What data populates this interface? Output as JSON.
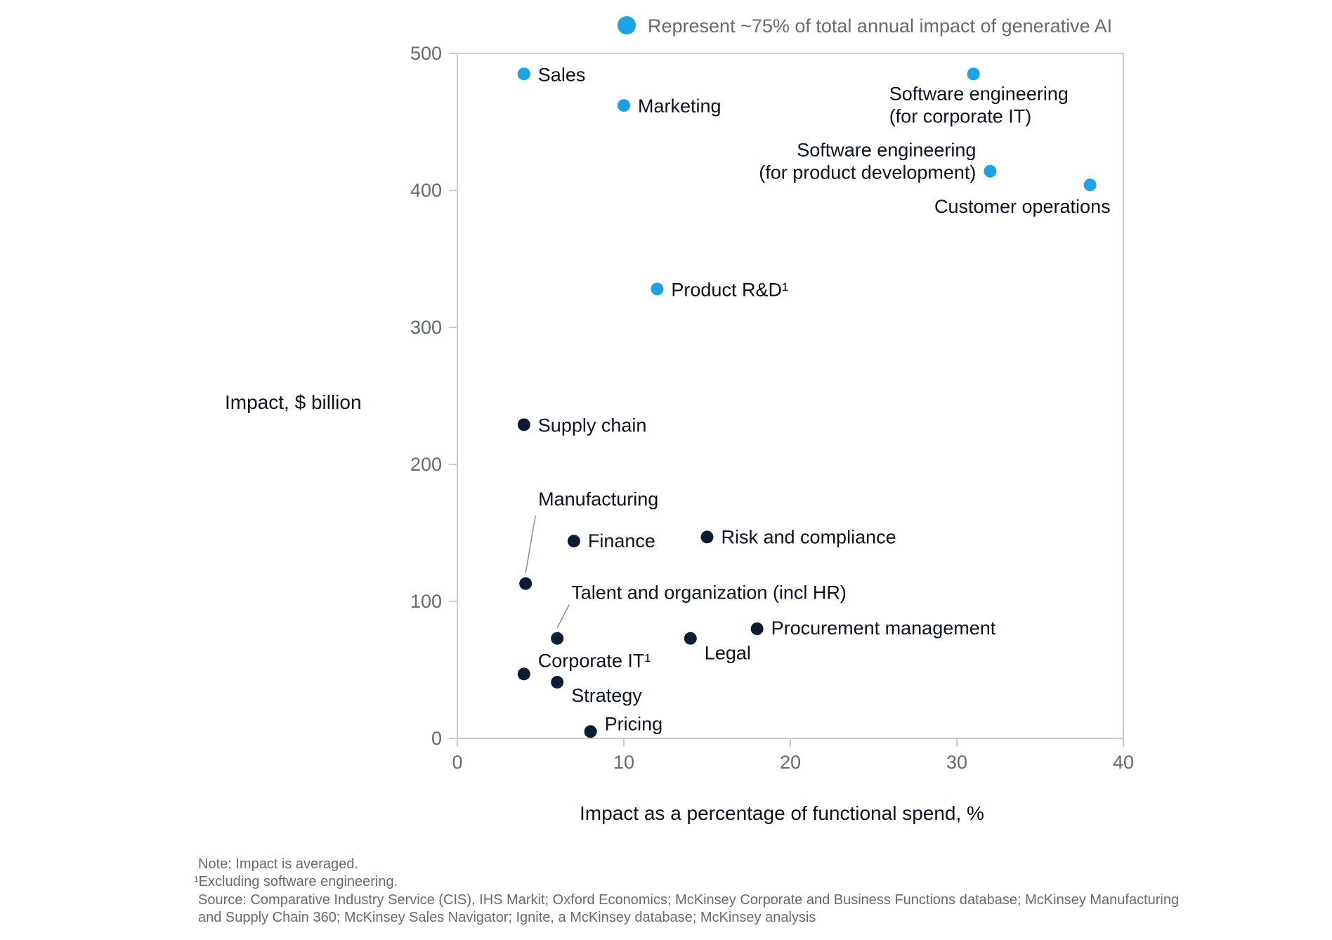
{
  "chart_data": {
    "type": "scatter",
    "legend": {
      "label": "Represent ~75% of total annual impact of generative AI",
      "placement": "top"
    },
    "xlabel": "Impact as a percentage of functional spend, %",
    "ylabel": "Impact, $ billion",
    "xlim": [
      0,
      40
    ],
    "ylim": [
      0,
      500
    ],
    "xticks": [
      "0",
      "10",
      "20",
      "30",
      "40"
    ],
    "yticks": [
      "0",
      "100",
      "200",
      "300",
      "400",
      "500"
    ],
    "colors": {
      "highlight": "#1ba2e8",
      "other": "#0b1c33",
      "axis": "#c8cbd0",
      "muted": "#666a70"
    },
    "points": [
      {
        "name": "sales",
        "label": "Sales",
        "x": 4,
        "y": 485,
        "highlight": true
      },
      {
        "name": "marketing",
        "label": "Marketing",
        "x": 10,
        "y": 462,
        "highlight": true
      },
      {
        "name": "software-engineering-corporate-it",
        "label": [
          "Software engineering",
          "(for corporate IT)"
        ],
        "x": 31,
        "y": 485,
        "highlight": true
      },
      {
        "name": "software-engineering-product-development",
        "label": [
          "Software engineering",
          "(for product development)"
        ],
        "x": 32,
        "y": 414,
        "highlight": true
      },
      {
        "name": "customer-operations",
        "label": "Customer operations",
        "x": 38,
        "y": 404,
        "highlight": true
      },
      {
        "name": "product-rd",
        "label": "Product R&D¹",
        "x": 12,
        "y": 328,
        "highlight": true
      },
      {
        "name": "supply-chain",
        "label": "Supply chain",
        "x": 4,
        "y": 229,
        "highlight": false
      },
      {
        "name": "manufacturing",
        "label": "Manufacturing",
        "x": 4.1,
        "y": 113,
        "highlight": false
      },
      {
        "name": "finance",
        "label": "Finance",
        "x": 7,
        "y": 144,
        "highlight": false
      },
      {
        "name": "risk-and-compliance",
        "label": "Risk and compliance",
        "x": 15,
        "y": 147,
        "highlight": false
      },
      {
        "name": "talent-and-organization",
        "label": "Talent and organization (incl HR)",
        "x": 6,
        "y": 73,
        "highlight": false
      },
      {
        "name": "procurement-management",
        "label": "Procurement management",
        "x": 18,
        "y": 80,
        "highlight": false
      },
      {
        "name": "legal",
        "label": "Legal",
        "x": 14,
        "y": 73,
        "highlight": false
      },
      {
        "name": "corporate-it",
        "label": "Corporate IT¹",
        "x": 4,
        "y": 47,
        "highlight": false
      },
      {
        "name": "strategy",
        "label": "Strategy",
        "x": 6,
        "y": 41,
        "highlight": false
      },
      {
        "name": "pricing",
        "label": "Pricing",
        "x": 8,
        "y": 5,
        "highlight": false
      }
    ]
  },
  "footnotes": {
    "note": "Note: Impact is averaged.",
    "footnote_1": "¹Excluding software engineering.",
    "source_line1": "Source: Comparative Industry Service (CIS), IHS Markit; Oxford Economics; McKinsey Corporate and Business Functions database; McKinsey Manufacturing",
    "source_line2": "and Supply Chain 360; McKinsey Sales Navigator; Ignite, a McKinsey database; McKinsey analysis"
  }
}
